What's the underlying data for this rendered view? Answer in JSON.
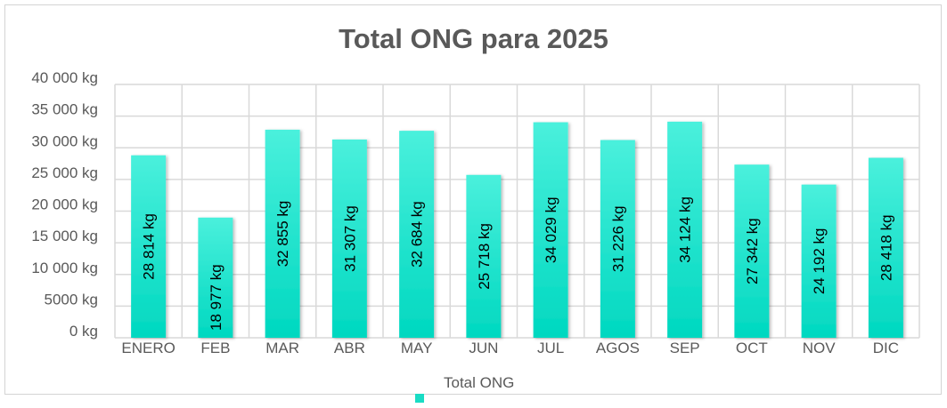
{
  "chart_data": {
    "type": "bar",
    "title": "Total ONG para 2025",
    "categories": [
      "ENERO",
      "FEB",
      "MAR",
      "ABR",
      "MAY",
      "JUN",
      "JUL",
      "AGOS",
      "SEP",
      "OCT",
      "NOV",
      "DIC"
    ],
    "series": [
      {
        "name": "Total ONG",
        "values": [
          28814,
          18977,
          32855,
          31307,
          32684,
          25718,
          34029,
          31226,
          34124,
          27342,
          24192,
          28418
        ]
      }
    ],
    "data_labels": [
      "28 814 kg",
      "18 977 kg",
      "32 855 kg",
      "31 307 kg",
      "32 684 kg",
      "25 718 kg",
      "34 029 kg",
      "31 226 kg",
      "34 124 kg",
      "27 342 kg",
      "24 192 kg",
      "28 418 kg"
    ],
    "yticks": [
      0,
      5000,
      10000,
      15000,
      20000,
      25000,
      30000,
      35000,
      40000
    ],
    "ytick_labels": [
      "0 kg",
      "5000 kg",
      "10 000 kg",
      "15 000 kg",
      "20 000 kg",
      "25 000 kg",
      "30 000 kg",
      "35 000 kg",
      "40 000 kg"
    ],
    "ylim": [
      0,
      40000
    ],
    "xlabel": "",
    "ylabel": "",
    "grid": true,
    "legend": "bottom",
    "colors": {
      "bar_top": "#4af0dc",
      "bar_bottom": "#00d8c0",
      "grid": "#d9d9d9",
      "text": "#595959"
    }
  }
}
